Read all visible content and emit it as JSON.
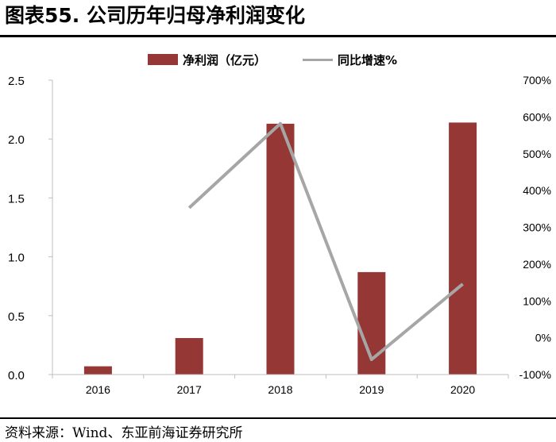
{
  "header": {
    "title": "图表55. 公司历年归母净利润变化"
  },
  "footer": {
    "source": "资料来源：Wind、东亚前海证券研究所"
  },
  "chart_data": {
    "type": "bar",
    "categories": [
      "2016",
      "2017",
      "2018",
      "2019",
      "2020"
    ],
    "series": [
      {
        "name": "净利润（亿元）",
        "type": "bar",
        "axis": "left",
        "values": [
          0.07,
          0.31,
          2.13,
          0.87,
          2.14
        ],
        "color": "#953735"
      },
      {
        "name": "同比增速%",
        "type": "line",
        "axis": "right",
        "values": [
          null,
          353,
          582,
          -59,
          146
        ],
        "color": "#a6a6a6"
      }
    ],
    "y_left": {
      "min": 0,
      "max": 2.5,
      "ticks": [
        "0.0",
        "0.5",
        "1.0",
        "1.5",
        "2.0",
        "2.5"
      ]
    },
    "y_right": {
      "min": -100,
      "max": 700,
      "ticks": [
        "-100%",
        "0%",
        "100%",
        "200%",
        "300%",
        "400%",
        "500%",
        "600%",
        "700%"
      ]
    },
    "legend_position": "top-center",
    "grid": false
  }
}
